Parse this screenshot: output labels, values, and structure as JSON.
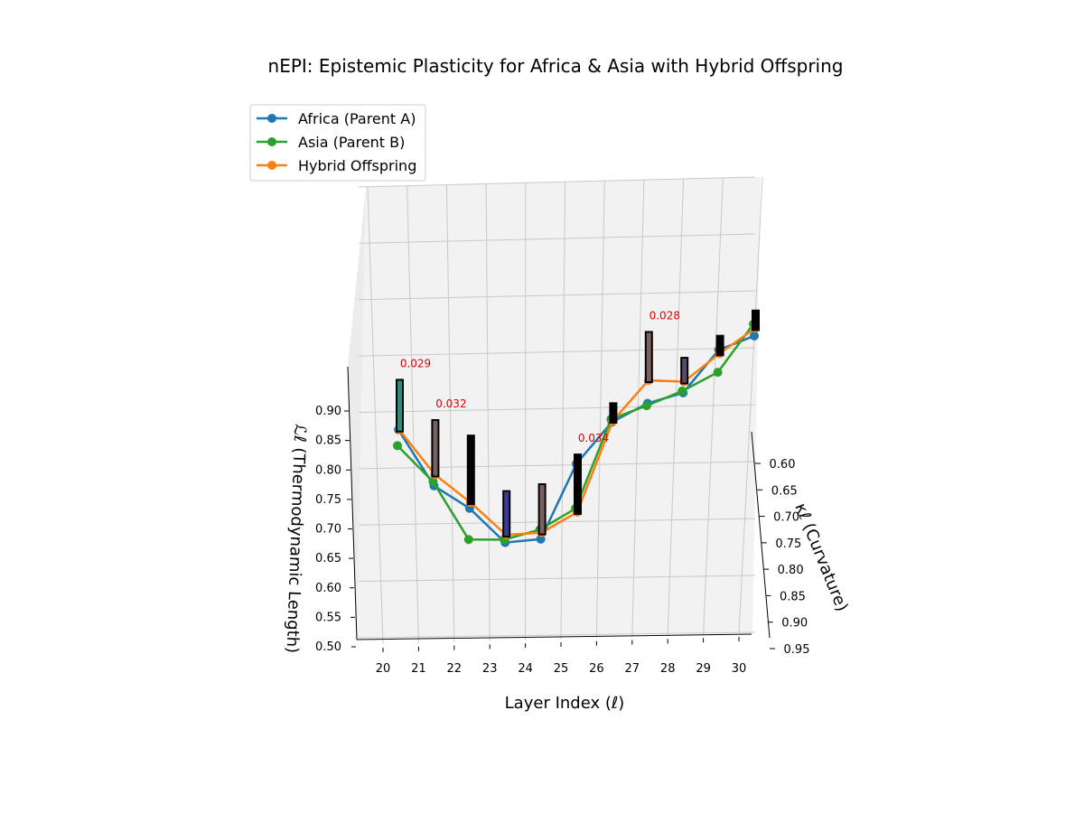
{
  "chart_data": {
    "type": "line",
    "projection": "3d",
    "title": "nEPI: Epistemic Plasticity for Africa & Asia with Hybrid Offspring",
    "xlabel": "Layer Index (ℓ)",
    "ylabel": "κℓ (Curvature)",
    "zlabel": "ℒℓ (Thermodynamic Length)",
    "x_ticks": [
      "20",
      "21",
      "22",
      "23",
      "24",
      "25",
      "26",
      "27",
      "28",
      "29",
      "30"
    ],
    "y_ticks": [
      "0.60",
      "0.65",
      "0.70",
      "0.75",
      "0.80",
      "0.85",
      "0.90",
      "0.95"
    ],
    "z_ticks": [
      "0.50",
      "0.55",
      "0.60",
      "0.65",
      "0.70",
      "0.75",
      "0.80",
      "0.85",
      "0.90"
    ],
    "grid": true,
    "legend_position": "upper-left",
    "series": [
      {
        "name": "Africa (Parent A)",
        "color": "#1f77b4",
        "x": [
          20,
          21,
          22,
          23,
          24,
          25,
          26,
          27,
          28,
          29,
          30
        ],
        "z": [
          0.87,
          0.773,
          0.733,
          0.673,
          0.677,
          0.803,
          0.872,
          0.902,
          0.918,
          0.989,
          1.011
        ]
      },
      {
        "name": "Asia (Parent B)",
        "color": "#2ca02c",
        "x": [
          20,
          21,
          22,
          23,
          24,
          25,
          26,
          27,
          28,
          29,
          30
        ],
        "z": [
          0.843,
          0.78,
          0.68,
          0.678,
          0.693,
          0.727,
          0.877,
          0.898,
          0.921,
          0.951,
          1.031
        ]
      },
      {
        "name": "Hybrid Offspring",
        "color": "#ff7f0e",
        "x": [
          20,
          21,
          22,
          23,
          24,
          25,
          26,
          27,
          28,
          29,
          30
        ],
        "z": [
          0.87,
          0.792,
          0.743,
          0.686,
          0.688,
          0.721,
          0.874,
          0.941,
          0.937,
          0.983,
          1.024
        ]
      }
    ],
    "bars": [
      {
        "x": 20,
        "value": 0.029,
        "color": "#2e8b7a",
        "label": "0.029"
      },
      {
        "x": 21,
        "value": 0.032,
        "color": "#7a6060",
        "label": "0.032"
      },
      {
        "x": 22,
        "value": 0.04,
        "color": "#000000",
        "label": ""
      },
      {
        "x": 23,
        "value": 0.025,
        "color": "#3b3b8f",
        "label": ""
      },
      {
        "x": 24,
        "value": 0.028,
        "color": "#7a6060",
        "label": ""
      },
      {
        "x": 25,
        "value": 0.034,
        "color": "#000000",
        "label": "0.034"
      },
      {
        "x": 26,
        "value": 0.008,
        "color": "#000000",
        "label": ""
      },
      {
        "x": 27,
        "value": 0.028,
        "color": "#7a6060",
        "label": "0.028"
      },
      {
        "x": 28,
        "value": 0.012,
        "color": "#5a4a6a",
        "label": ""
      },
      {
        "x": 29,
        "value": 0.008,
        "color": "#000000",
        "label": ""
      },
      {
        "x": 30,
        "value": 0.008,
        "color": "#000000",
        "label": ""
      }
    ]
  }
}
